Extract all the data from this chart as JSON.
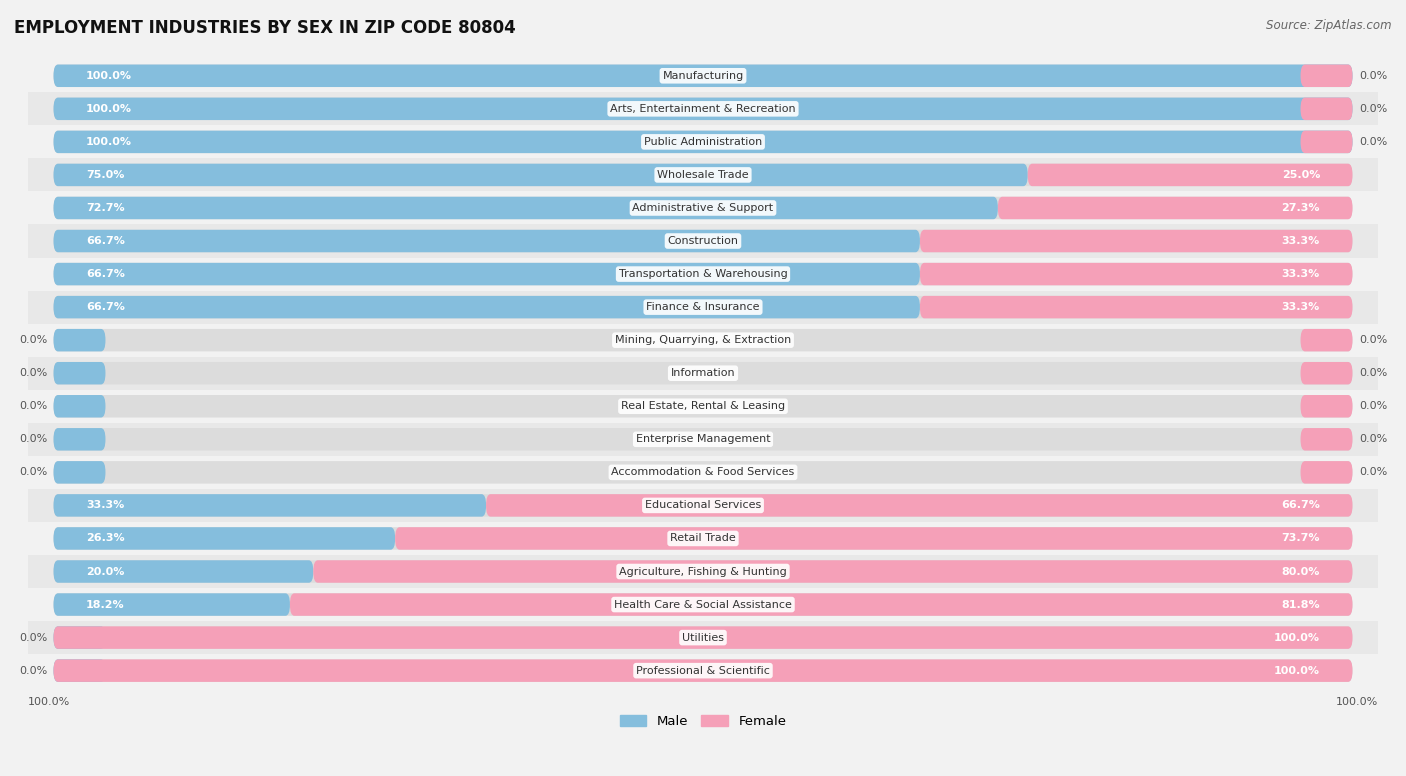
{
  "title": "EMPLOYMENT INDUSTRIES BY SEX IN ZIP CODE 80804",
  "source": "Source: ZipAtlas.com",
  "categories": [
    "Manufacturing",
    "Arts, Entertainment & Recreation",
    "Public Administration",
    "Wholesale Trade",
    "Administrative & Support",
    "Construction",
    "Transportation & Warehousing",
    "Finance & Insurance",
    "Mining, Quarrying, & Extraction",
    "Information",
    "Real Estate, Rental & Leasing",
    "Enterprise Management",
    "Accommodation & Food Services",
    "Educational Services",
    "Retail Trade",
    "Agriculture, Fishing & Hunting",
    "Health Care & Social Assistance",
    "Utilities",
    "Professional & Scientific"
  ],
  "male_pct": [
    100.0,
    100.0,
    100.0,
    75.0,
    72.7,
    66.7,
    66.7,
    66.7,
    0.0,
    0.0,
    0.0,
    0.0,
    0.0,
    33.3,
    26.3,
    20.0,
    18.2,
    0.0,
    0.0
  ],
  "female_pct": [
    0.0,
    0.0,
    0.0,
    25.0,
    27.3,
    33.3,
    33.3,
    33.3,
    0.0,
    0.0,
    0.0,
    0.0,
    0.0,
    66.7,
    73.7,
    80.0,
    81.8,
    100.0,
    100.0
  ],
  "male_color": "#85bedd",
  "female_color": "#f5a0b8",
  "background_color": "#f2f2f2",
  "bar_background": "#dcdcdc",
  "row_bg_alt": "#e8e8e8",
  "title_fontsize": 12,
  "source_fontsize": 8.5,
  "label_fontsize": 8,
  "pct_fontsize": 8
}
